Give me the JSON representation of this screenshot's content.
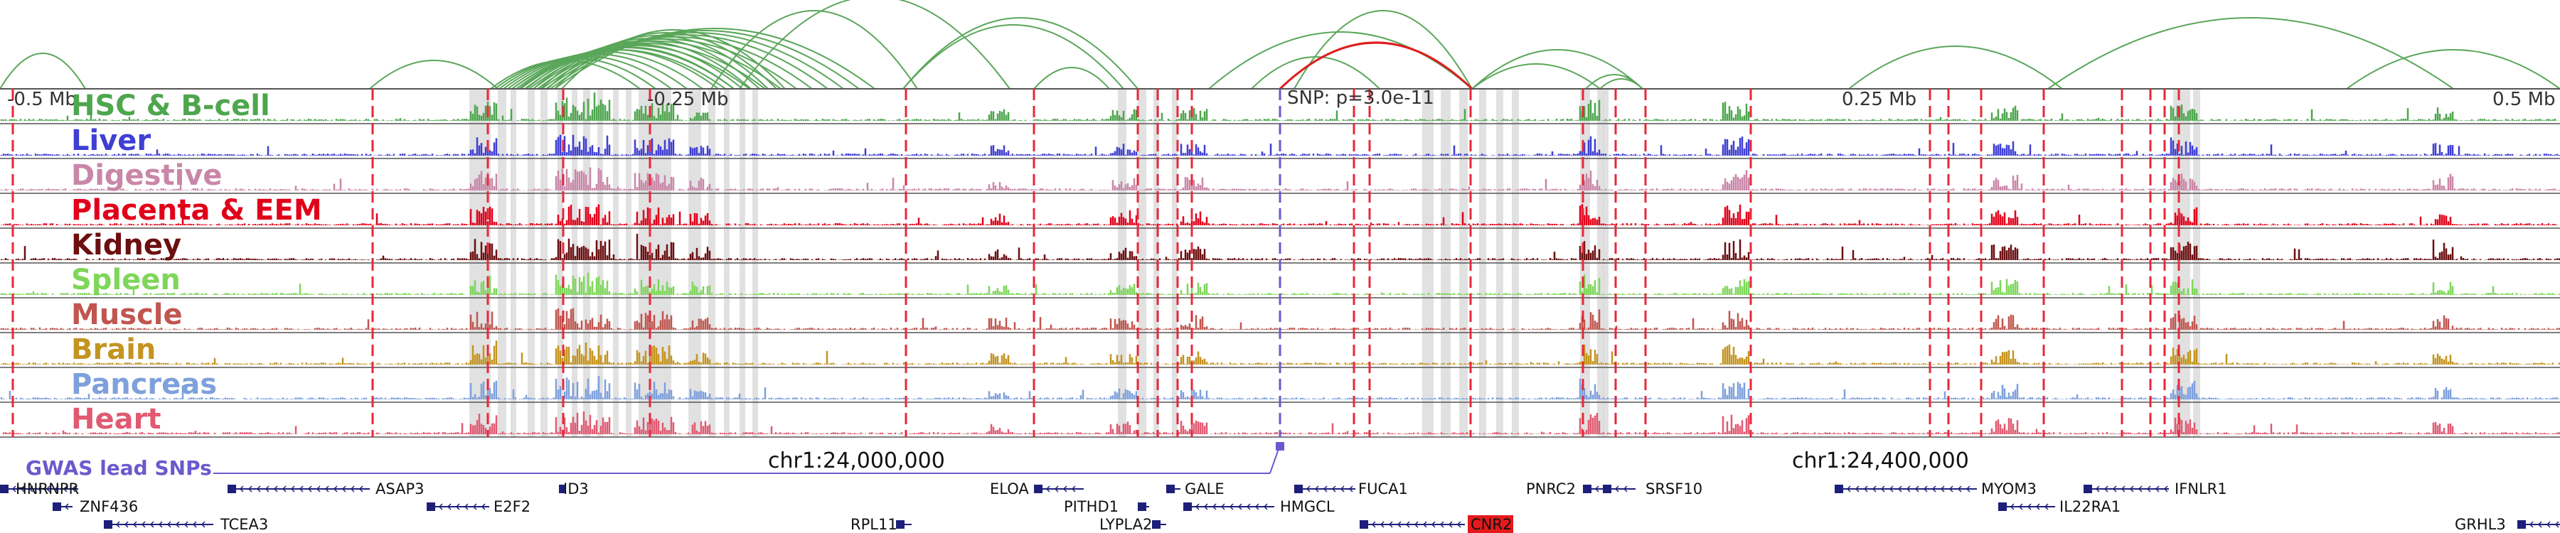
{
  "colors": {
    "arc": "#5aa65a",
    "arc_highlight": "#dd1f1f",
    "snp_line": "#e8273a",
    "shade": "#d9d9d9",
    "gwas": "#6a5acd",
    "gene": "#1d1f7a",
    "highlight_gene_bg": "#e41a1c"
  },
  "axis": {
    "ticks": [
      "-0.5 Mb",
      "-0.25 Mb",
      "0.25 Mb",
      "0.5 Mb"
    ]
  },
  "snp_annotation": "SNP: p=3.0e-11",
  "tracks": [
    {
      "label": "HSC & B-cell",
      "color": "#4ea64e"
    },
    {
      "label": "Liver",
      "color": "#3f3fd4"
    },
    {
      "label": "Digestive",
      "color": "#c987a8"
    },
    {
      "label": "Placenta & EEM",
      "color": "#e0001a"
    },
    {
      "label": "Kidney",
      "color": "#6b0f10"
    },
    {
      "label": "Spleen",
      "color": "#7ed65a"
    },
    {
      "label": "Muscle",
      "color": "#c0564f"
    },
    {
      "label": "Brain",
      "color": "#c49420"
    },
    {
      "label": "Pancreas",
      "color": "#7ea0dc"
    },
    {
      "label": "Heart",
      "color": "#e05a72"
    }
  ],
  "gwas": {
    "label": "GWAS lead SNPs"
  },
  "coordinates": [
    "chr1:24,000,000",
    "chr1:24,400,000"
  ],
  "genes": [
    {
      "name": "HNRNPR",
      "row": 0
    },
    {
      "name": "ASAP3",
      "row": 0
    },
    {
      "name": "ID3",
      "row": 0
    },
    {
      "name": "ELOA",
      "row": 0
    },
    {
      "name": "GALE",
      "row": 0
    },
    {
      "name": "FUCA1",
      "row": 0
    },
    {
      "name": "PNRC2",
      "row": 0
    },
    {
      "name": "SRSF10",
      "row": 0
    },
    {
      "name": "MYOM3",
      "row": 0
    },
    {
      "name": "IFNLR1",
      "row": 0
    },
    {
      "name": "ZNF436",
      "row": 1
    },
    {
      "name": "E2F2",
      "row": 1
    },
    {
      "name": "PITHD1",
      "row": 1
    },
    {
      "name": "HMGCL",
      "row": 1
    },
    {
      "name": "IL22RA1",
      "row": 1
    },
    {
      "name": "TCEA3",
      "row": 2
    },
    {
      "name": "RPL11",
      "row": 2
    },
    {
      "name": "LYPLA2",
      "row": 2
    },
    {
      "name": "CNR2",
      "row": 2,
      "highlight": true
    },
    {
      "name": "GRHL3",
      "row": 2
    }
  ]
}
